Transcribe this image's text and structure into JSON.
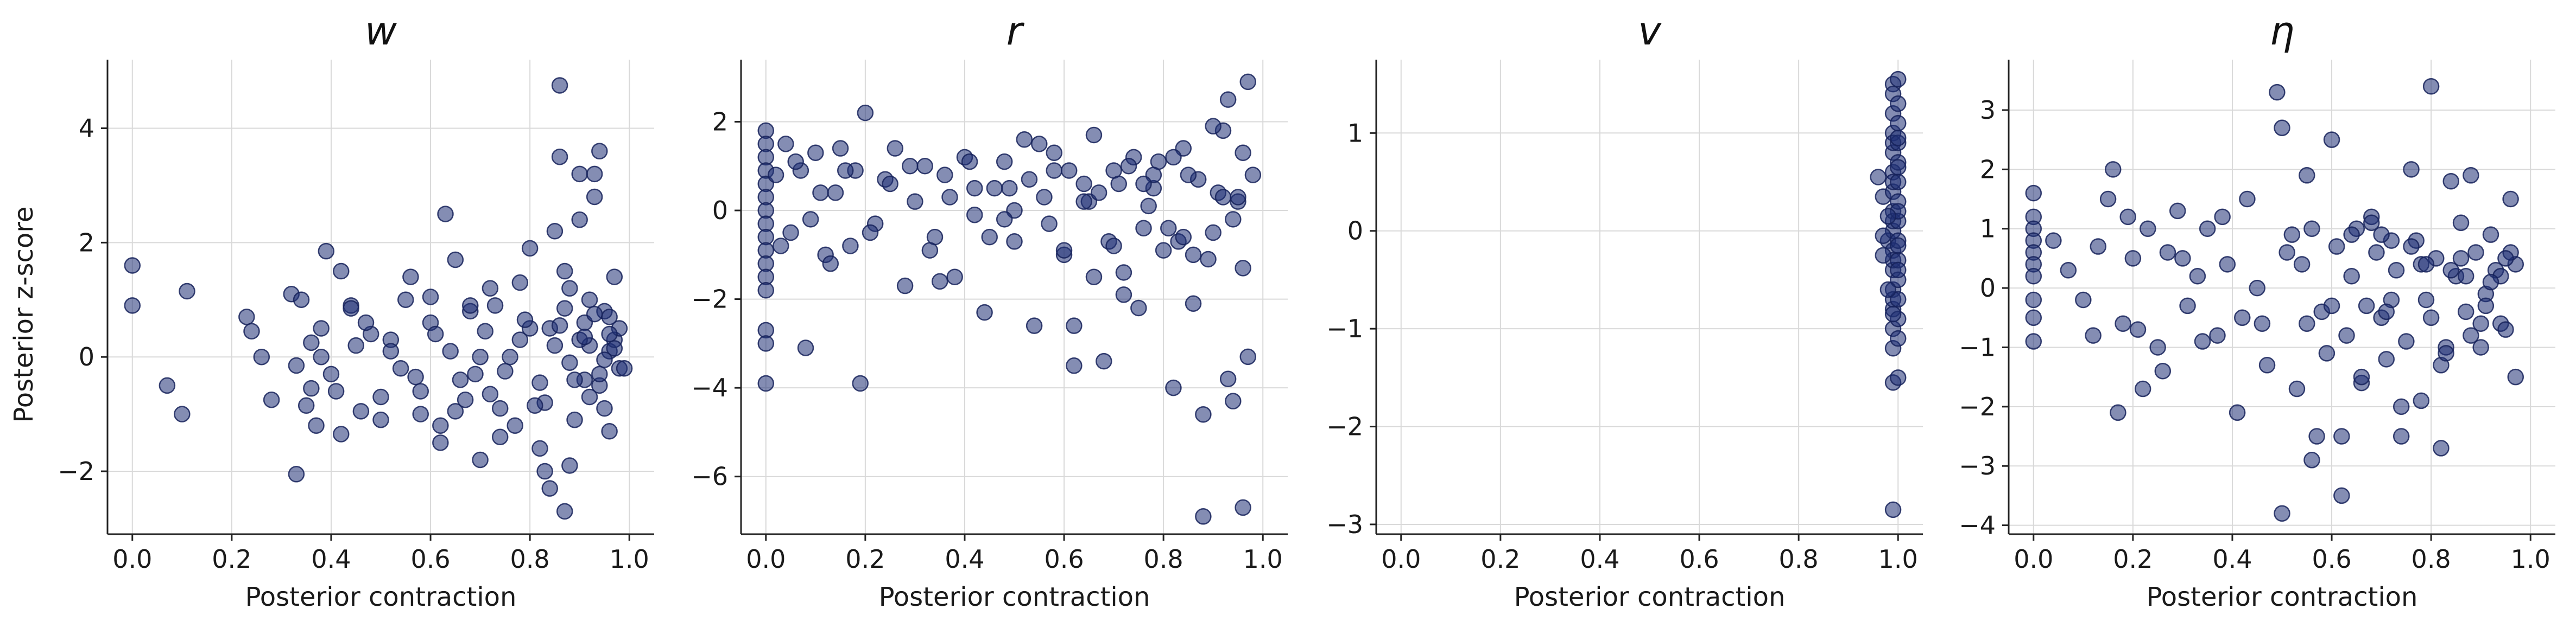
{
  "figure": {
    "ylabel": "Posterior z-score",
    "xlabel": "Posterior contraction",
    "marker_color": "#1f2f74",
    "marker_edge": "#16225a",
    "grid": true
  },
  "chart_data": [
    {
      "type": "scatter",
      "title": "w",
      "xlabel": "Posterior contraction",
      "ylabel": "Posterior z-score",
      "xlim": [
        -0.05,
        1.05
      ],
      "ylim": [
        -3.1,
        5.2
      ],
      "xticks": [
        0.0,
        0.2,
        0.4,
        0.6,
        0.8,
        1.0
      ],
      "xtick_labels": [
        "0.0",
        "0.2",
        "0.4",
        "0.6",
        "0.8",
        "1.0"
      ],
      "yticks": [
        -2,
        0,
        2,
        4
      ],
      "ytick_labels": [
        "−2",
        "0",
        "2",
        "4"
      ],
      "x": [
        0.0,
        0.0,
        0.07,
        0.1,
        0.11,
        0.23,
        0.24,
        0.26,
        0.28,
        0.32,
        0.33,
        0.34,
        0.35,
        0.36,
        0.37,
        0.38,
        0.39,
        0.4,
        0.42,
        0.44,
        0.45,
        0.46,
        0.48,
        0.5,
        0.52,
        0.54,
        0.56,
        0.58,
        0.6,
        0.62,
        0.63,
        0.64,
        0.66,
        0.68,
        0.7,
        0.72,
        0.74,
        0.76,
        0.78,
        0.8,
        0.82,
        0.84,
        0.86,
        0.87,
        0.88,
        0.9,
        0.91,
        0.92,
        0.93,
        0.94,
        0.95,
        0.96,
        0.97,
        0.38,
        0.42,
        0.47,
        0.5,
        0.55,
        0.58,
        0.61,
        0.65,
        0.69,
        0.73,
        0.77,
        0.8,
        0.83,
        0.85,
        0.88,
        0.9,
        0.92,
        0.94,
        0.96,
        0.98,
        0.86,
        0.9,
        0.93,
        0.96,
        0.84,
        0.87,
        0.89,
        0.91,
        0.95,
        0.97,
        0.33,
        0.36,
        0.41,
        0.44,
        0.52,
        0.57,
        0.6,
        0.67,
        0.71,
        0.75,
        0.79,
        0.82,
        0.85,
        0.88,
        0.91,
        0.94,
        0.97,
        0.62,
        0.68,
        0.72,
        0.78,
        0.81,
        0.86,
        0.89,
        0.93,
        0.95,
        0.98,
        0.65,
        0.7,
        0.74,
        0.83,
        0.87,
        0.92,
        0.96,
        0.99
      ],
      "y": [
        1.6,
        0.9,
        -0.5,
        -1.0,
        1.15,
        0.7,
        0.45,
        0.0,
        -0.75,
        1.1,
        -2.05,
        1.0,
        -0.85,
        -0.55,
        -1.2,
        0.5,
        1.85,
        -0.3,
        -1.35,
        0.9,
        0.2,
        -0.95,
        0.4,
        -1.1,
        0.3,
        -0.2,
        1.4,
        -0.6,
        0.6,
        -1.5,
        2.5,
        0.1,
        -0.4,
        0.8,
        -1.8,
        1.2,
        -0.9,
        0.0,
        0.3,
        1.9,
        -1.6,
        0.5,
        4.75,
        -2.7,
        1.2,
        3.2,
        -0.4,
        0.2,
        2.8,
        3.6,
        0.8,
        -1.3,
        1.4,
        0.0,
        1.5,
        0.6,
        -0.7,
        1.0,
        -1.0,
        0.4,
        1.7,
        -0.3,
        0.9,
        -1.2,
        0.5,
        -0.8,
        2.2,
        -1.9,
        0.3,
        1.0,
        -0.5,
        0.7,
        -0.2,
        3.5,
        2.4,
        3.2,
        0.1,
        -2.3,
        1.5,
        -1.1,
        0.6,
        -0.9,
        0.3,
        -0.15,
        0.25,
        -0.6,
        0.85,
        0.1,
        -0.35,
        1.05,
        -0.75,
        0.45,
        -0.25,
        0.65,
        -0.45,
        0.2,
        -0.1,
        0.35,
        -0.3,
        0.15,
        -1.2,
        0.9,
        -0.65,
        1.3,
        -0.85,
        0.55,
        -0.4,
        0.75,
        -0.05,
        0.5,
        -0.95,
        0.0,
        -1.4,
        -2.0,
        0.85,
        -0.7,
        0.4,
        -0.2
      ]
    },
    {
      "type": "scatter",
      "title": "r",
      "xlabel": "Posterior contraction",
      "ylabel": "",
      "xlim": [
        -0.05,
        1.05
      ],
      "ylim": [
        -7.3,
        3.4
      ],
      "xticks": [
        0.0,
        0.2,
        0.4,
        0.6,
        0.8,
        1.0
      ],
      "xtick_labels": [
        "0.0",
        "0.2",
        "0.4",
        "0.6",
        "0.8",
        "1.0"
      ],
      "yticks": [
        -6,
        -4,
        -2,
        0,
        2
      ],
      "ytick_labels": [
        "−6",
        "−4",
        "−2",
        "0",
        "2"
      ],
      "x": [
        0.0,
        0.0,
        0.0,
        0.0,
        0.0,
        0.0,
        0.0,
        0.0,
        0.0,
        0.0,
        0.0,
        0.0,
        0.0,
        0.0,
        0.0,
        0.0,
        0.02,
        0.04,
        0.05,
        0.07,
        0.08,
        0.09,
        0.1,
        0.12,
        0.14,
        0.15,
        0.17,
        0.18,
        0.19,
        0.2,
        0.22,
        0.24,
        0.26,
        0.28,
        0.3,
        0.32,
        0.34,
        0.36,
        0.38,
        0.4,
        0.42,
        0.44,
        0.46,
        0.48,
        0.5,
        0.52,
        0.54,
        0.56,
        0.58,
        0.6,
        0.62,
        0.64,
        0.66,
        0.68,
        0.7,
        0.72,
        0.74,
        0.76,
        0.78,
        0.8,
        0.82,
        0.84,
        0.86,
        0.87,
        0.88,
        0.9,
        0.92,
        0.93,
        0.94,
        0.95,
        0.96,
        0.97,
        0.98,
        0.03,
        0.06,
        0.11,
        0.13,
        0.16,
        0.21,
        0.25,
        0.29,
        0.33,
        0.37,
        0.41,
        0.45,
        0.49,
        0.53,
        0.57,
        0.61,
        0.65,
        0.69,
        0.73,
        0.77,
        0.81,
        0.85,
        0.89,
        0.91,
        0.94,
        0.96,
        0.62,
        0.66,
        0.71,
        0.75,
        0.79,
        0.83,
        0.88,
        0.93,
        0.95,
        0.97,
        0.5,
        0.55,
        0.6,
        0.67,
        0.72,
        0.78,
        0.84,
        0.9,
        0.35,
        0.42,
        0.48,
        0.58,
        0.64,
        0.7,
        0.76,
        0.82,
        0.86,
        0.92,
        0.96
      ],
      "y": [
        1.8,
        1.5,
        1.2,
        0.9,
        0.6,
        0.3,
        0.0,
        -0.3,
        -0.6,
        -0.9,
        -1.2,
        -1.5,
        -1.8,
        -2.7,
        -3.9,
        -3.0,
        0.8,
        1.5,
        -0.5,
        0.9,
        -3.1,
        -0.2,
        1.3,
        -1.0,
        0.4,
        1.4,
        -0.8,
        0.9,
        -3.9,
        2.2,
        -0.3,
        0.7,
        1.4,
        -1.7,
        0.2,
        1.0,
        -0.6,
        0.8,
        -1.5,
        1.2,
        -0.1,
        -2.3,
        0.5,
        1.1,
        -0.7,
        1.6,
        -2.6,
        0.3,
        1.3,
        -1.0,
        -2.6,
        0.6,
        1.7,
        -3.4,
        0.9,
        -1.9,
        1.2,
        -0.4,
        0.5,
        -0.9,
        -4.0,
        1.4,
        -2.1,
        0.7,
        -6.9,
        -0.5,
        1.8,
        2.5,
        -4.3,
        0.2,
        -6.7,
        2.9,
        0.8,
        -0.8,
        1.1,
        0.4,
        -1.2,
        0.9,
        -0.5,
        0.6,
        1.0,
        -0.9,
        0.3,
        1.1,
        -0.6,
        0.5,
        0.7,
        -0.3,
        0.9,
        0.2,
        -0.7,
        1.0,
        0.1,
        -0.4,
        0.8,
        -1.1,
        0.4,
        -0.2,
        1.3,
        -3.5,
        -1.5,
        0.6,
        -2.2,
        1.1,
        -0.7,
        -4.6,
        -3.8,
        0.3,
        -3.3,
        0.0,
        1.5,
        -0.9,
        0.4,
        -1.4,
        0.8,
        -0.6,
        1.9,
        -1.6,
        0.5,
        -0.2,
        0.9,
        0.2,
        -0.8,
        0.6,
        1.2,
        -1.0,
        0.3,
        -1.3
      ],
      "ylabel_hidden": true
    },
    {
      "type": "scatter",
      "title": "v",
      "xlabel": "Posterior contraction",
      "ylabel": "",
      "xlim": [
        -0.05,
        1.05
      ],
      "ylim": [
        -3.1,
        1.75
      ],
      "xticks": [
        0.0,
        0.2,
        0.4,
        0.6,
        0.8,
        1.0
      ],
      "xtick_labels": [
        "0.0",
        "0.2",
        "0.4",
        "0.6",
        "0.8",
        "1.0"
      ],
      "yticks": [
        -3,
        -2,
        -1,
        0,
        1
      ],
      "ytick_labels": [
        "−3",
        "−2",
        "−1",
        "0",
        "1"
      ],
      "x": [
        0.96,
        0.97,
        0.98,
        0.99,
        0.99,
        0.99,
        0.99,
        0.99,
        0.99,
        0.99,
        0.99,
        0.99,
        0.99,
        0.99,
        0.99,
        0.99,
        0.99,
        0.99,
        0.99,
        0.99,
        0.99,
        0.99,
        0.99,
        0.99,
        0.99,
        1.0,
        1.0,
        1.0,
        1.0,
        1.0,
        1.0,
        1.0,
        1.0,
        1.0,
        1.0,
        1.0,
        1.0,
        1.0,
        1.0,
        1.0,
        1.0,
        1.0,
        1.0,
        1.0,
        1.0,
        0.97,
        0.98,
        0.98,
        0.99,
        0.97
      ],
      "y": [
        0.55,
        0.35,
        -0.1,
        1.5,
        1.2,
        1.0,
        0.8,
        0.6,
        0.4,
        0.2,
        0.0,
        -0.2,
        -0.4,
        -0.6,
        -0.8,
        -1.0,
        -1.55,
        -2.85,
        1.4,
        0.9,
        0.5,
        0.1,
        -0.3,
        -0.7,
        -1.2,
        1.55,
        1.3,
        1.1,
        0.9,
        0.7,
        0.5,
        0.3,
        0.1,
        -0.1,
        -0.3,
        -0.5,
        -0.7,
        -0.9,
        -1.1,
        -1.5,
        0.2,
        -0.4,
        0.65,
        -0.15,
        0.95,
        -0.25,
        0.15,
        -0.6,
        -0.85,
        -0.05
      ]
    },
    {
      "type": "scatter",
      "title": "η",
      "xlabel": "Posterior contraction",
      "ylabel": "",
      "xlim": [
        -0.05,
        1.05
      ],
      "ylim": [
        -4.15,
        3.85
      ],
      "xticks": [
        0.0,
        0.2,
        0.4,
        0.6,
        0.8,
        1.0
      ],
      "xtick_labels": [
        "0.0",
        "0.2",
        "0.4",
        "0.6",
        "0.8",
        "1.0"
      ],
      "yticks": [
        -4,
        -3,
        -2,
        -1,
        0,
        1,
        2,
        3
      ],
      "ytick_labels": [
        "−4",
        "−3",
        "−2",
        "−1",
        "0",
        "1",
        "2",
        "3"
      ],
      "x": [
        0.0,
        0.0,
        0.0,
        0.0,
        0.0,
        0.0,
        0.0,
        0.0,
        0.0,
        0.0,
        0.04,
        0.07,
        0.1,
        0.13,
        0.15,
        0.16,
        0.17,
        0.19,
        0.2,
        0.21,
        0.23,
        0.25,
        0.27,
        0.29,
        0.31,
        0.33,
        0.35,
        0.37,
        0.39,
        0.41,
        0.43,
        0.45,
        0.47,
        0.49,
        0.5,
        0.51,
        0.53,
        0.55,
        0.56,
        0.57,
        0.58,
        0.6,
        0.62,
        0.64,
        0.66,
        0.68,
        0.7,
        0.72,
        0.74,
        0.76,
        0.78,
        0.8,
        0.82,
        0.84,
        0.86,
        0.88,
        0.9,
        0.92,
        0.94,
        0.96,
        0.12,
        0.18,
        0.22,
        0.26,
        0.3,
        0.34,
        0.38,
        0.42,
        0.46,
        0.52,
        0.54,
        0.59,
        0.61,
        0.63,
        0.65,
        0.67,
        0.69,
        0.71,
        0.73,
        0.75,
        0.77,
        0.79,
        0.81,
        0.83,
        0.85,
        0.87,
        0.89,
        0.91,
        0.93,
        0.95,
        0.97,
        0.62,
        0.66,
        0.7,
        0.74,
        0.78,
        0.82,
        0.86,
        0.9,
        0.94,
        0.97,
        0.5,
        0.56,
        0.6,
        0.68,
        0.72,
        0.76,
        0.8,
        0.84,
        0.88,
        0.92,
        0.96,
        0.55,
        0.64,
        0.71,
        0.79,
        0.83,
        0.87,
        0.91,
        0.95
      ],
      "y": [
        1.6,
        1.2,
        1.0,
        0.8,
        0.6,
        0.4,
        0.2,
        -0.2,
        -0.5,
        -0.9,
        0.8,
        0.3,
        -0.2,
        0.7,
        1.5,
        2.0,
        -2.1,
        1.2,
        0.5,
        -0.7,
        1.0,
        -1.0,
        0.6,
        1.3,
        -0.3,
        0.2,
        1.0,
        -0.8,
        0.4,
        -2.1,
        1.5,
        0.0,
        -1.3,
        3.3,
        2.7,
        0.6,
        -1.7,
        1.9,
        1.0,
        -2.5,
        -0.4,
        2.5,
        -3.5,
        0.2,
        -1.6,
        1.2,
        -0.5,
        0.8,
        -2.5,
        2.0,
        -1.9,
        3.4,
        -2.7,
        1.8,
        0.5,
        1.9,
        -1.0,
        0.9,
        -0.6,
        1.5,
        -0.8,
        -0.6,
        -1.7,
        -1.4,
        0.5,
        -0.9,
        1.2,
        -0.5,
        -0.6,
        0.9,
        0.4,
        -1.1,
        0.7,
        -0.8,
        1.0,
        -0.3,
        0.6,
        -1.2,
        0.3,
        -0.9,
        0.8,
        -0.2,
        0.5,
        -1.0,
        0.2,
        -0.4,
        0.6,
        -0.1,
        0.3,
        -0.7,
        0.4,
        -2.5,
        -1.5,
        0.9,
        -2.0,
        0.4,
        -1.3,
        1.1,
        -0.6,
        0.2,
        -1.5,
        -3.8,
        -2.9,
        -0.3,
        1.1,
        -0.2,
        0.7,
        -0.5,
        0.3,
        -0.8,
        0.1,
        0.6,
        -0.6,
        0.9,
        -0.4,
        0.4,
        -1.1,
        0.2,
        -0.3,
        0.5
      ]
    }
  ]
}
